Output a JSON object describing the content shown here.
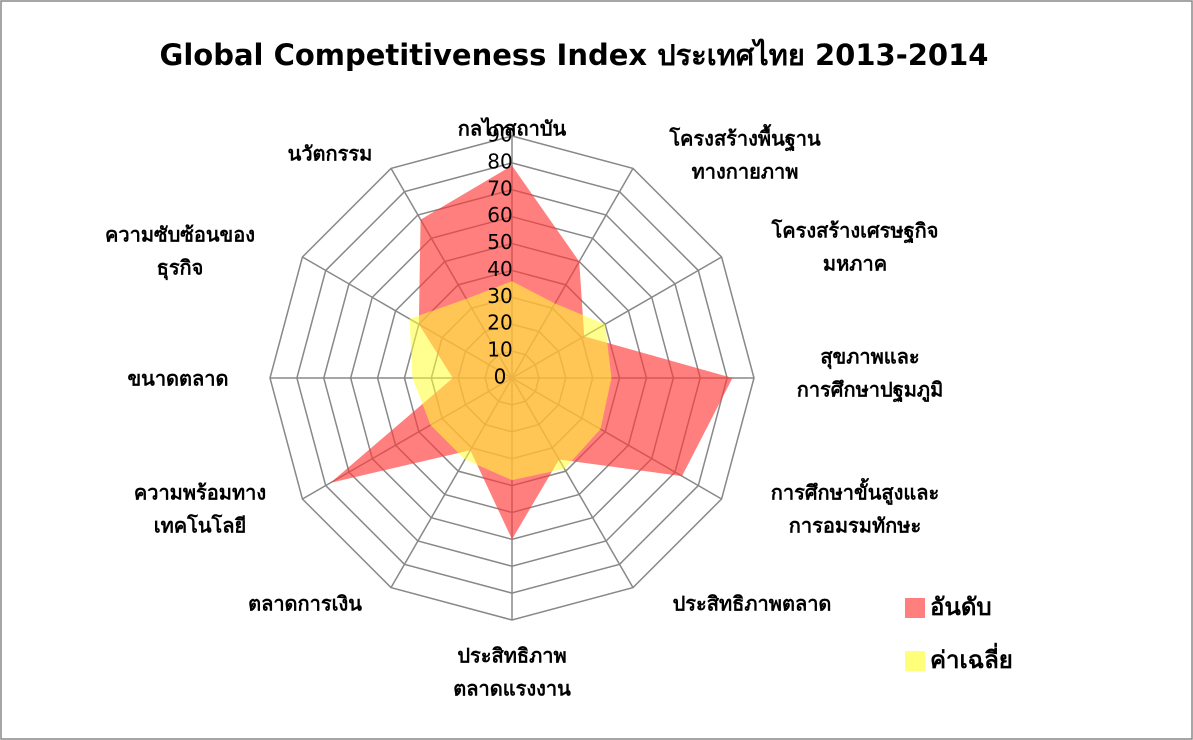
{
  "chart_data": {
    "type": "radar",
    "title": "Global Competitiveness Index ประเทศไทย 2013-2014",
    "categories": [
      "กลไกสถาบัน",
      [
        "โครงสร้างพื้นฐาน",
        "ทางกายภาพ"
      ],
      [
        "โครงสร้างเศรษฐกิจ",
        "มหภาค"
      ],
      [
        "สุขภาพและ",
        "การศึกษาปฐมภูมิ"
      ],
      [
        "การศึกษาขั้นสูงและ",
        "การอมรมทักษะ"
      ],
      "ประสิทธิภาพตลาด",
      [
        "ประสิทธิภาพ",
        "ตลาดแรงงาน"
      ],
      "ตลาดการเงิน",
      [
        "ความพร้อมทาง",
        "เทคโนโลยี"
      ],
      "ขนาดตลาด",
      [
        "ความซับซ้อนของ",
        "ธุรกิจ"
      ],
      "นวัตกรรม"
    ],
    "series": [
      {
        "name": "อันดับ",
        "color": "#ff3b3b",
        "values": [
          79,
          50,
          31,
          82,
          73,
          35,
          60,
          31,
          78,
          22,
          40,
          68
        ]
      },
      {
        "name": "ค่าเฉลี่ย",
        "color": "#ffff33",
        "values": [
          36,
          32,
          40,
          37,
          38,
          39,
          38,
          35,
          35,
          37,
          44,
          34
        ]
      }
    ],
    "ylim": [
      0,
      90
    ],
    "yticks": [
      0,
      10,
      20,
      30,
      40,
      50,
      60,
      70,
      80,
      90
    ],
    "grid": true,
    "legend": "bottom-right"
  }
}
